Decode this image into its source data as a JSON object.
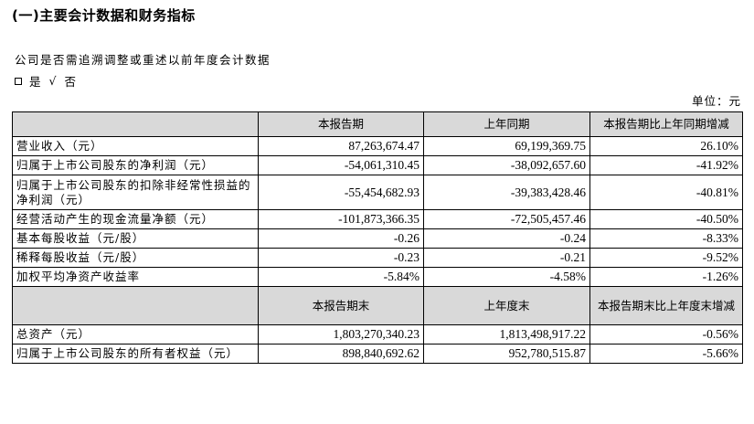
{
  "section_title": "(一)主要会计数据和财务指标",
  "question": "公司是否需追溯调整或重述以前年度会计数据",
  "answer": {
    "yes_label": "是",
    "check_mark": "√",
    "no_label": "否"
  },
  "unit": "单位：元",
  "table1": {
    "headers": [
      "",
      "本报告期",
      "上年同期",
      "本报告期比上年同期增减"
    ],
    "rows": [
      {
        "label": "营业收入（元）",
        "current": "87,263,674.47",
        "prior": "69,199,369.75",
        "change": "26.10%"
      },
      {
        "label": "归属于上市公司股东的净利润（元）",
        "current": "-54,061,310.45",
        "prior": "-38,092,657.60",
        "change": "-41.92%"
      },
      {
        "label": "归属于上市公司股东的扣除非经常性损益的净利润（元）",
        "current": "-55,454,682.93",
        "prior": "-39,383,428.46",
        "change": "-40.81%"
      },
      {
        "label": "经营活动产生的现金流量净额（元）",
        "current": "-101,873,366.35",
        "prior": "-72,505,457.46",
        "change": "-40.50%"
      },
      {
        "label": "基本每股收益（元/股）",
        "current": "-0.26",
        "prior": "-0.24",
        "change": "-8.33%"
      },
      {
        "label": "稀释每股收益（元/股）",
        "current": "-0.23",
        "prior": "-0.21",
        "change": "-9.52%"
      },
      {
        "label": "加权平均净资产收益率",
        "current": "-5.84%",
        "prior": "-4.58%",
        "change": "-1.26%"
      }
    ]
  },
  "table2": {
    "headers": [
      "",
      "本报告期末",
      "上年度末",
      "本报告期末比上年度末增减"
    ],
    "rows": [
      {
        "label": "总资产（元）",
        "current": "1,803,270,340.23",
        "prior": "1,813,498,917.22",
        "change": "-0.56%"
      },
      {
        "label": "归属于上市公司股东的所有者权益（元）",
        "current": "898,840,692.62",
        "prior": "952,780,515.87",
        "change": "-5.66%"
      }
    ]
  }
}
